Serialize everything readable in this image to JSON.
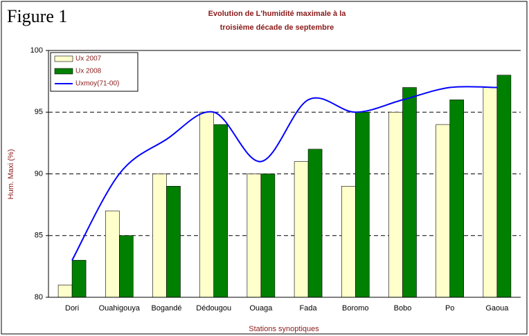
{
  "chart_data": {
    "type": "bar",
    "figure_label": "Figure 1",
    "title": [
      "Evolution de L'humidité maximale  à la",
      "troisième décade de septembre"
    ],
    "x_label": "Stations synoptiques",
    "y_label": "Hum. Maxi (%)",
    "categories": [
      "Dori",
      "Ouahigouya",
      "Bogandé",
      "Dédougou",
      "Ouaga",
      "Fada",
      "Boromo",
      "Bobo",
      "Po",
      "Gaoua"
    ],
    "series": [
      {
        "name": "Ux 2007",
        "type": "bar",
        "color": "#ffffcc",
        "values": [
          81,
          87,
          90,
          95,
          90,
          91,
          89,
          95,
          94,
          97
        ]
      },
      {
        "name": "Ux 2008",
        "type": "bar",
        "color": "#008000",
        "values": [
          83,
          85,
          89,
          94,
          90,
          92,
          95,
          97,
          96,
          98
        ]
      },
      {
        "name": "Uxmoy(71-00)",
        "type": "line",
        "color": "#0000ff",
        "values": [
          83,
          90,
          92.8,
          95,
          91,
          96,
          95,
          96,
          97,
          97
        ]
      }
    ],
    "ylim": [
      80,
      100
    ],
    "yticks": [
      80,
      85,
      90,
      95,
      100
    ],
    "grid": true,
    "legend": "top-left"
  }
}
